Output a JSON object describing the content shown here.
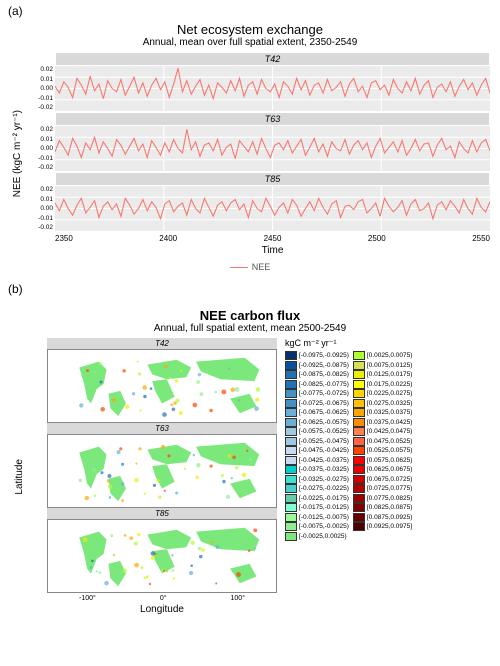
{
  "panelA": {
    "label": "(a)",
    "title": "Net ecosystem exchange",
    "subtitle": "Annual, mean over full spatial extent, 2350-2549",
    "ylabel": "NEE (kgC m⁻² yr⁻¹)",
    "xlabel": "Time",
    "legend_label": "NEE",
    "series_color": "#f8766d",
    "facet_bg": "#ebebeb",
    "strip_bg": "#d9d9d9",
    "xlim": [
      2350,
      2550
    ],
    "xticks": [
      "2350",
      "2400",
      "2450",
      "2500",
      "2550"
    ],
    "ylim": [
      -0.02,
      0.02
    ],
    "yticks": [
      "0.02",
      "0.01",
      "0.00",
      "-0.01",
      "-0.02"
    ],
    "facets": [
      {
        "name": "T42",
        "data": [
          0.002,
          -0.004,
          0.006,
          0.001,
          -0.008,
          0.009,
          0.003,
          -0.005,
          0.011,
          -0.002,
          0.004,
          -0.009,
          0.007,
          0.0,
          -0.003,
          0.008,
          -0.006,
          0.002,
          0.01,
          -0.004,
          0.005,
          -0.007,
          0.003,
          0.009,
          -0.001,
          0.006,
          -0.008,
          0.004,
          0.018,
          -0.003,
          0.007,
          -0.005,
          0.002,
          0.008,
          -0.006,
          0.003,
          -0.009,
          0.005,
          0.001,
          -0.004,
          0.007,
          -0.002,
          0.009,
          -0.007,
          0.003,
          0.006,
          -0.005,
          0.008,
          0.0,
          -0.003,
          0.004,
          -0.008,
          0.006,
          0.002,
          -0.005,
          0.009,
          -0.001,
          0.007,
          -0.006,
          0.003,
          0.005,
          -0.004,
          0.008,
          -0.002,
          0.001,
          0.006,
          -0.007,
          0.004,
          0.009,
          -0.003,
          0.002,
          -0.008,
          0.005,
          0.007,
          -0.001,
          0.003,
          -0.006,
          0.008,
          0.0,
          -0.004,
          0.006,
          -0.002,
          0.009,
          -0.005,
          0.003,
          0.007,
          -0.008,
          0.001,
          0.004,
          -0.003,
          0.006,
          -0.007,
          0.002,
          0.008,
          -0.001,
          0.005,
          -0.006,
          0.003,
          0.009,
          -0.004
        ]
      },
      {
        "name": "T63",
        "data": [
          -0.003,
          0.007,
          0.001,
          -0.006,
          0.009,
          0.002,
          -0.008,
          0.005,
          -0.001,
          0.01,
          -0.004,
          0.006,
          0.0,
          -0.007,
          0.008,
          0.003,
          -0.005,
          0.002,
          0.009,
          -0.002,
          0.004,
          -0.008,
          0.007,
          0.001,
          -0.006,
          0.005,
          -0.003,
          0.008,
          0.0,
          -0.004,
          0.017,
          -0.001,
          0.006,
          -0.007,
          0.003,
          0.005,
          -0.002,
          0.008,
          -0.006,
          0.001,
          0.004,
          -0.009,
          0.007,
          0.002,
          -0.003,
          0.006,
          -0.005,
          0.009,
          0.0,
          -0.008,
          0.003,
          0.005,
          -0.001,
          0.007,
          -0.004,
          0.002,
          0.008,
          -0.006,
          0.001,
          0.009,
          -0.003,
          0.004,
          -0.007,
          0.006,
          0.0,
          -0.002,
          0.008,
          -0.005,
          0.003,
          0.007,
          -0.001,
          0.005,
          -0.008,
          0.002,
          0.009,
          -0.004,
          0.001,
          0.006,
          -0.003,
          0.007,
          -0.006,
          0.0,
          0.008,
          -0.002,
          0.004,
          0.005,
          -0.007,
          0.003,
          0.009,
          -0.001,
          0.002,
          -0.008,
          0.006,
          0.0,
          -0.004,
          0.007,
          -0.003,
          0.005,
          0.008,
          -0.002
        ]
      },
      {
        "name": "T85",
        "data": [
          0.005,
          -0.002,
          0.008,
          0.0,
          -0.006,
          0.003,
          0.009,
          -0.004,
          0.001,
          0.007,
          -0.008,
          0.002,
          0.006,
          -0.001,
          0.004,
          -0.007,
          0.009,
          0.003,
          -0.005,
          0.0,
          0.008,
          -0.002,
          0.006,
          0.001,
          -0.009,
          0.004,
          0.007,
          -0.003,
          0.002,
          0.005,
          -0.006,
          0.008,
          0.0,
          -0.004,
          0.009,
          0.001,
          -0.007,
          0.003,
          0.006,
          -0.002,
          0.005,
          0.008,
          -0.001,
          0.004,
          -0.008,
          0.007,
          0.0,
          -0.003,
          0.009,
          0.002,
          -0.006,
          0.001,
          0.005,
          -0.004,
          0.008,
          0.003,
          -0.007,
          0.0,
          0.006,
          -0.002,
          0.009,
          0.001,
          -0.005,
          0.004,
          0.007,
          -0.008,
          0.002,
          0.003,
          -0.001,
          0.006,
          0.008,
          -0.004,
          0.0,
          0.005,
          -0.007,
          0.009,
          0.002,
          -0.003,
          0.001,
          0.007,
          -0.006,
          0.004,
          0.008,
          -0.002,
          0.0,
          0.005,
          -0.009,
          0.003,
          0.006,
          -0.001,
          0.007,
          0.002,
          -0.004,
          0.008,
          0.0,
          -0.005,
          0.009,
          0.001,
          -0.003,
          0.006
        ]
      }
    ]
  },
  "panelB": {
    "label": "(b)",
    "title": "NEE carbon flux",
    "subtitle": "Annual, full spatial extent, mean 2500-2549",
    "ylabel": "Latitude",
    "xlabel": "Longitude",
    "cb_title": "kgC m⁻² yr⁻¹",
    "yticks": [
      "50°",
      "0°",
      "-50°"
    ],
    "xticks": [
      "-100°",
      "0°",
      "100°"
    ],
    "facets": [
      "T42",
      "T63",
      "T85"
    ],
    "land_color": "#7be87b",
    "colorbar": {
      "left": [
        {
          "c": "#08306b",
          "l": "[-0.0975,-0.0925)"
        },
        {
          "c": "#08519c",
          "l": "[-0.0925,-0.0875)"
        },
        {
          "c": "#2171b5",
          "l": "[-0.0875,-0.0825)"
        },
        {
          "c": "#2171b5",
          "l": "[-0.0825,-0.0775)"
        },
        {
          "c": "#4292c6",
          "l": "[-0.0775,-0.0725)"
        },
        {
          "c": "#4292c6",
          "l": "[-0.0725,-0.0675)"
        },
        {
          "c": "#6baed6",
          "l": "[-0.0675,-0.0625)"
        },
        {
          "c": "#6baed6",
          "l": "[-0.0625,-0.0575)"
        },
        {
          "c": "#9ecae1",
          "l": "[-0.0575,-0.0525)"
        },
        {
          "c": "#9ecae1",
          "l": "[-0.0525,-0.0475)"
        },
        {
          "c": "#c6dbef",
          "l": "[-0.0475,-0.0425)"
        },
        {
          "c": "#c6dbef",
          "l": "[-0.0425,-0.0375)"
        },
        {
          "c": "#00ced1",
          "l": "[-0.0375,-0.0325)"
        },
        {
          "c": "#40e0d0",
          "l": "[-0.0325,-0.0275)"
        },
        {
          "c": "#48d1cc",
          "l": "[-0.0275,-0.0225)"
        },
        {
          "c": "#66cdaa",
          "l": "[-0.0225,-0.0175)"
        },
        {
          "c": "#7fffd4",
          "l": "[-0.0175,-0.0125)"
        },
        {
          "c": "#98fb98",
          "l": "[-0.0125,-0.0075)"
        },
        {
          "c": "#90ee90",
          "l": "[-0.0075,-0.0025)"
        },
        {
          "c": "#7be87b",
          "l": "[-0.0025,0.0025)"
        }
      ],
      "right": [
        {
          "c": "#adff2f",
          "l": "[0.0025,0.0075)"
        },
        {
          "c": "#d4e157",
          "l": "[0.0075,0.0125)"
        },
        {
          "c": "#eeee00",
          "l": "[0.0125,0.0175)"
        },
        {
          "c": "#ffff00",
          "l": "[0.0175,0.0225)"
        },
        {
          "c": "#ffd700",
          "l": "[0.0225,0.0275)"
        },
        {
          "c": "#ffc107",
          "l": "[0.0275,0.0325)"
        },
        {
          "c": "#ffa500",
          "l": "[0.0325,0.0375)"
        },
        {
          "c": "#ff8c00",
          "l": "[0.0375,0.0425)"
        },
        {
          "c": "#ff7f50",
          "l": "[0.0425,0.0475)"
        },
        {
          "c": "#ff6347",
          "l": "[0.0475,0.0525)"
        },
        {
          "c": "#ff4500",
          "l": "[0.0525,0.0575)"
        },
        {
          "c": "#ff0000",
          "l": "[0.0575,0.0625)"
        },
        {
          "c": "#e60000",
          "l": "[0.0625,0.0675)"
        },
        {
          "c": "#cc0000",
          "l": "[0.0675,0.0725)"
        },
        {
          "c": "#b30000",
          "l": "[0.0725,0.0775)"
        },
        {
          "c": "#990000",
          "l": "[0.0775,0.0825)"
        },
        {
          "c": "#800000",
          "l": "[0.0825,0.0875)"
        },
        {
          "c": "#660000",
          "l": "[0.0875,0.0925)"
        },
        {
          "c": "#4d0000",
          "l": "[0.0925,0.0975]"
        }
      ]
    }
  }
}
